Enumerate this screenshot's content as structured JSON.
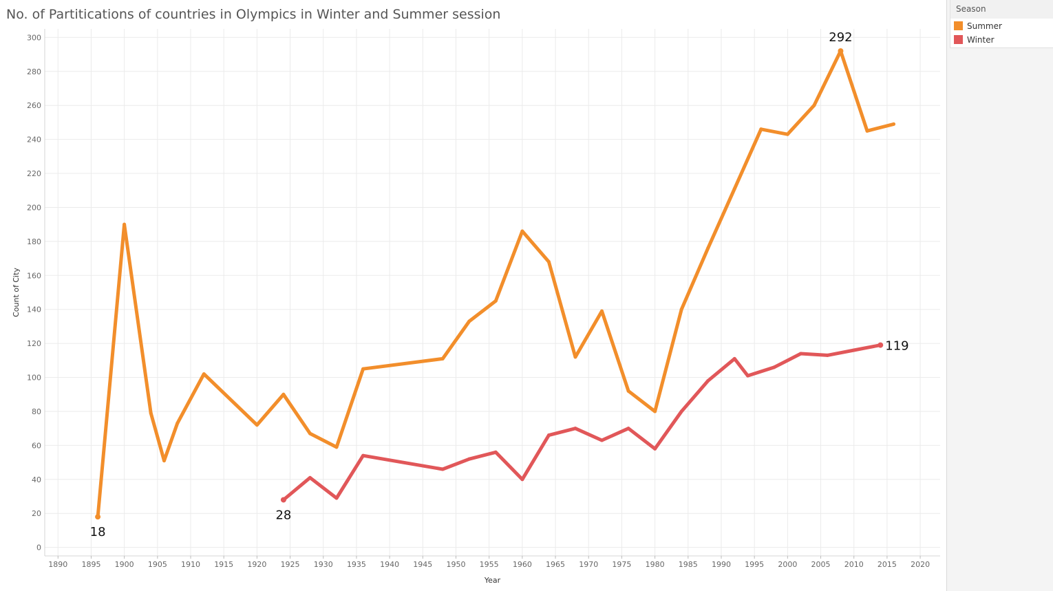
{
  "title": "No. of Partitications of countries in Olympics in Winter and Summer session",
  "legend": {
    "title": "Season",
    "items": [
      {
        "label": "Summer",
        "color": "#F28E2B"
      },
      {
        "label": "Winter",
        "color": "#E15759"
      }
    ]
  },
  "chart_data": {
    "type": "line",
    "title": "No. of Partitications of countries in Olympics in Winter and Summer session",
    "xlabel": "Year",
    "ylabel": "Count of City",
    "xlim": [
      1888,
      2023
    ],
    "ylim": [
      -5,
      305
    ],
    "x_ticks": [
      1890,
      1895,
      1900,
      1905,
      1910,
      1915,
      1920,
      1925,
      1930,
      1935,
      1940,
      1945,
      1950,
      1955,
      1960,
      1965,
      1970,
      1975,
      1980,
      1985,
      1990,
      1995,
      2000,
      2005,
      2010,
      2015,
      2020
    ],
    "y_ticks": [
      0,
      20,
      40,
      60,
      80,
      100,
      120,
      140,
      160,
      180,
      200,
      220,
      240,
      260,
      280,
      300
    ],
    "grid": true,
    "legend_position": "right",
    "series": [
      {
        "name": "Summer",
        "color": "#F28E2B",
        "points": [
          [
            1896,
            18
          ],
          [
            1900,
            190
          ],
          [
            1904,
            79
          ],
          [
            1906,
            51
          ],
          [
            1908,
            73
          ],
          [
            1912,
            102
          ],
          [
            1920,
            72
          ],
          [
            1924,
            90
          ],
          [
            1928,
            67
          ],
          [
            1932,
            59
          ],
          [
            1936,
            105
          ],
          [
            1948,
            111
          ],
          [
            1952,
            133
          ],
          [
            1956,
            145
          ],
          [
            1960,
            186
          ],
          [
            1964,
            168
          ],
          [
            1968,
            112
          ],
          [
            1972,
            139
          ],
          [
            1976,
            92
          ],
          [
            1980,
            80
          ],
          [
            1984,
            140
          ],
          [
            1988,
            176
          ],
          [
            1992,
            211
          ],
          [
            1996,
            246
          ],
          [
            2000,
            243
          ],
          [
            2004,
            260
          ],
          [
            2008,
            292
          ],
          [
            2012,
            245
          ],
          [
            2016,
            249
          ]
        ],
        "labels": [
          {
            "x": 1896,
            "y": 18,
            "text": "18",
            "position": "below"
          },
          {
            "x": 2008,
            "y": 292,
            "text": "292",
            "position": "above"
          }
        ]
      },
      {
        "name": "Winter",
        "color": "#E15759",
        "points": [
          [
            1924,
            28
          ],
          [
            1928,
            41
          ],
          [
            1932,
            29
          ],
          [
            1936,
            54
          ],
          [
            1948,
            46
          ],
          [
            1952,
            52
          ],
          [
            1956,
            56
          ],
          [
            1960,
            40
          ],
          [
            1964,
            66
          ],
          [
            1968,
            70
          ],
          [
            1972,
            63
          ],
          [
            1976,
            70
          ],
          [
            1980,
            58
          ],
          [
            1984,
            80
          ],
          [
            1988,
            98
          ],
          [
            1992,
            111
          ],
          [
            1994,
            101
          ],
          [
            1998,
            106
          ],
          [
            2002,
            114
          ],
          [
            2006,
            113
          ],
          [
            2010,
            116
          ],
          [
            2014,
            119
          ]
        ],
        "labels": [
          {
            "x": 1924,
            "y": 28,
            "text": "28",
            "position": "below"
          },
          {
            "x": 2014,
            "y": 119,
            "text": "119",
            "position": "right"
          }
        ]
      }
    ]
  }
}
